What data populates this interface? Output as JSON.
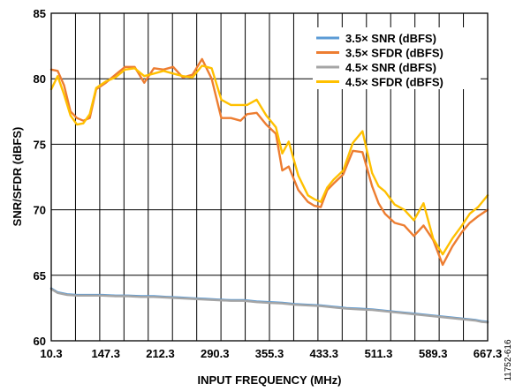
{
  "chart_data": {
    "type": "line",
    "xlabel": "INPUT FREQUENCY (MHz)",
    "ylabel": "SNR/SFDR (dBFS)",
    "x_ticks": [
      "10.3",
      "147.3",
      "212.3",
      "290.3",
      "355.3",
      "433.3",
      "511.3",
      "589.3",
      "667.3"
    ],
    "y_ticks": [
      "60",
      "65",
      "70",
      "75",
      "80",
      "85"
    ],
    "ylim": [
      60,
      85
    ],
    "xlim": [
      10,
      690
    ],
    "grid": true,
    "legend": "top-right",
    "figure_id": "11752-616",
    "series": [
      {
        "name": "3.5× SNR (dBFS)",
        "color": "#5B9BD5",
        "x": [
          10,
          20,
          35,
          50,
          70,
          90,
          110,
          130,
          150,
          170,
          190,
          210,
          230,
          250,
          270,
          290,
          310,
          330,
          350,
          370,
          390,
          410,
          430,
          450,
          470,
          490,
          510,
          530,
          550,
          570,
          590,
          610,
          630,
          650,
          670,
          680,
          690
        ],
        "y": [
          64.0,
          63.7,
          63.55,
          63.5,
          63.5,
          63.5,
          63.45,
          63.45,
          63.4,
          63.4,
          63.35,
          63.3,
          63.25,
          63.2,
          63.15,
          63.1,
          63.1,
          63.0,
          62.95,
          62.9,
          62.8,
          62.75,
          62.7,
          62.6,
          62.5,
          62.45,
          62.4,
          62.3,
          62.2,
          62.1,
          62.0,
          61.9,
          61.8,
          61.7,
          61.6,
          61.5,
          61.45
        ]
      },
      {
        "name": "3.5× SFDR (dBFS)",
        "color": "#ED7D31",
        "x": [
          10,
          20,
          30,
          40,
          50,
          60,
          70,
          80,
          95,
          110,
          125,
          140,
          155,
          170,
          185,
          200,
          215,
          230,
          245,
          260,
          275,
          290,
          305,
          315,
          330,
          345,
          360,
          370,
          380,
          395,
          410,
          420,
          430,
          440,
          450,
          465,
          480,
          495,
          510,
          520,
          530,
          545,
          560,
          575,
          590,
          605,
          620,
          635,
          650,
          662,
          675,
          690
        ],
        "y": [
          80.7,
          80.6,
          79.5,
          77.5,
          77.0,
          76.8,
          77.0,
          79.2,
          79.7,
          80.3,
          80.9,
          80.9,
          79.7,
          80.8,
          80.7,
          80.9,
          80.1,
          80.3,
          81.5,
          80.0,
          77.0,
          77.0,
          76.8,
          77.3,
          77.4,
          76.5,
          75.8,
          73.0,
          73.3,
          71.5,
          70.6,
          70.3,
          70.2,
          71.5,
          72.0,
          72.7,
          74.5,
          74.4,
          71.8,
          70.5,
          69.7,
          69.0,
          68.8,
          68.0,
          68.8,
          67.7,
          65.8,
          67.2,
          68.3,
          69.0,
          69.5,
          70.0
        ]
      },
      {
        "name": "4.5× SNR (dBFS)",
        "color": "#A5A5A5",
        "x": [
          10,
          20,
          35,
          50,
          70,
          90,
          110,
          130,
          150,
          170,
          190,
          210,
          230,
          250,
          270,
          290,
          310,
          330,
          350,
          370,
          390,
          410,
          430,
          450,
          470,
          490,
          510,
          530,
          550,
          570,
          590,
          610,
          630,
          650,
          670,
          680,
          690
        ],
        "y": [
          63.95,
          63.65,
          63.5,
          63.45,
          63.45,
          63.45,
          63.4,
          63.4,
          63.35,
          63.35,
          63.3,
          63.25,
          63.2,
          63.15,
          63.1,
          63.05,
          63.05,
          62.95,
          62.9,
          62.85,
          62.75,
          62.7,
          62.65,
          62.55,
          62.45,
          62.4,
          62.35,
          62.25,
          62.15,
          62.05,
          61.95,
          61.85,
          61.75,
          61.65,
          61.55,
          61.45,
          61.4
        ]
      },
      {
        "name": "4.5× SFDR (dBFS)",
        "color": "#FFC000",
        "x": [
          10,
          20,
          30,
          40,
          50,
          60,
          70,
          80,
          95,
          110,
          125,
          140,
          155,
          170,
          185,
          200,
          215,
          230,
          245,
          260,
          275,
          290,
          305,
          315,
          330,
          345,
          360,
          370,
          380,
          395,
          410,
          420,
          430,
          440,
          450,
          465,
          480,
          495,
          510,
          520,
          530,
          545,
          560,
          575,
          590,
          605,
          620,
          635,
          650,
          662,
          675,
          690
        ],
        "y": [
          79.2,
          80.2,
          78.8,
          77.2,
          76.5,
          76.6,
          77.3,
          79.3,
          79.8,
          80.1,
          80.7,
          80.8,
          80.2,
          80.4,
          80.6,
          80.4,
          80.2,
          80.1,
          81.0,
          80.8,
          78.4,
          78.0,
          78.0,
          78.0,
          78.4,
          77.2,
          76.3,
          74.3,
          75.2,
          72.6,
          71.1,
          70.8,
          70.6,
          71.7,
          72.3,
          73.0,
          75.1,
          76.0,
          72.8,
          71.8,
          71.4,
          70.4,
          70.0,
          69.2,
          70.5,
          67.8,
          66.6,
          67.8,
          68.8,
          69.7,
          70.2,
          71.1
        ]
      }
    ]
  }
}
